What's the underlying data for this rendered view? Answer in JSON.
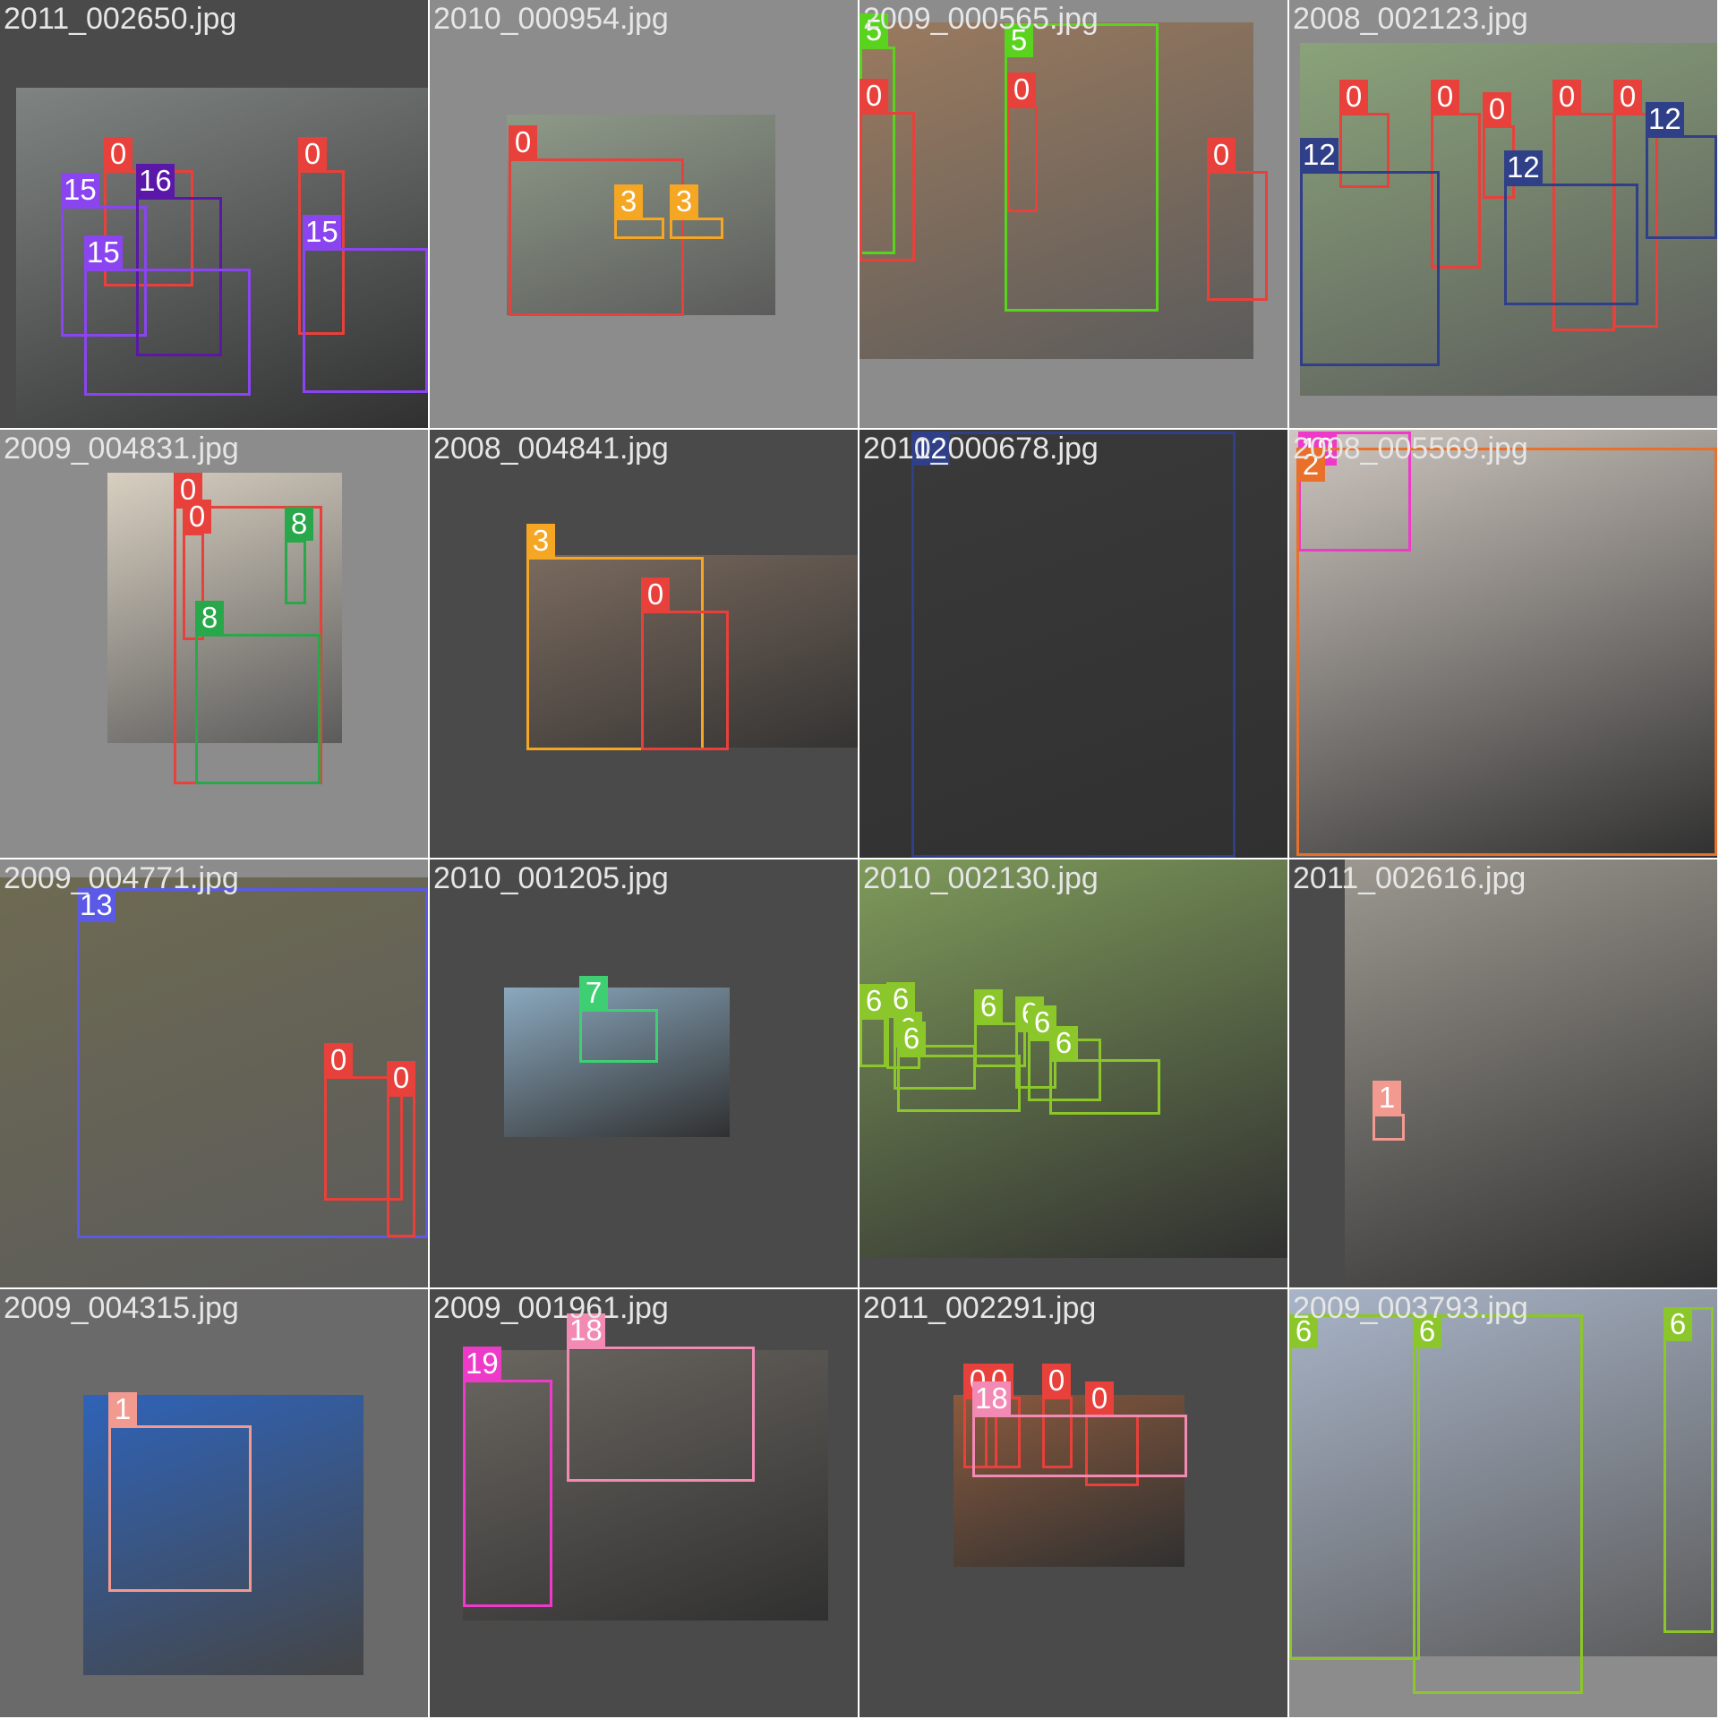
{
  "palette": {
    "0": "#e8403a",
    "1": "#f29a90",
    "3": "#f5a623",
    "5": "#5ad31e",
    "6": "#8bc72a",
    "7": "#3ecf72",
    "8": "#28a84a",
    "12": "#2f3f88",
    "13": "#5a5ae6",
    "15": "#8a45f0",
    "16": "#5b17a8",
    "18": "#f28ab4",
    "19": "#ee3ac8",
    "2": "#e8702a"
  },
  "tiles": [
    {
      "filename": "2011_002650.jpg",
      "background": "#4a4a4a",
      "photo_tone": "#7f8482",
      "boxes": [
        {
          "label": "0"
        },
        {
          "label": "0"
        },
        {
          "label": "15"
        },
        {
          "label": "16"
        },
        {
          "label": "15"
        },
        {
          "label": "15"
        }
      ]
    },
    {
      "filename": "2010_000954.jpg",
      "background": "#8c8c8c",
      "photo_tone": "#8e9a88",
      "boxes": [
        {
          "label": "0"
        },
        {
          "label": "3"
        },
        {
          "label": "3"
        }
      ]
    },
    {
      "filename": "2009_000565.jpg",
      "background": "#8c8c8c",
      "photo_tone": "#9a7a5e",
      "boxes": [
        {
          "label": "5"
        },
        {
          "label": "5"
        },
        {
          "label": "0"
        },
        {
          "label": "0"
        },
        {
          "label": "0"
        }
      ]
    },
    {
      "filename": "2008_002123.jpg",
      "background": "#8c8c8c",
      "photo_tone": "#8aa37a",
      "boxes": [
        {
          "label": "0"
        },
        {
          "label": "0"
        },
        {
          "label": "0"
        },
        {
          "label": "0"
        },
        {
          "label": "0"
        },
        {
          "label": "12"
        },
        {
          "label": "12"
        },
        {
          "label": "12"
        }
      ]
    },
    {
      "filename": "2009_004831.jpg",
      "background": "#8c8c8c",
      "photo_tone": "#d8cfc0",
      "boxes": [
        {
          "label": "0"
        },
        {
          "label": "0"
        },
        {
          "label": "8"
        },
        {
          "label": "8"
        }
      ]
    },
    {
      "filename": "2008_004841.jpg",
      "background": "#4a4a4a",
      "photo_tone": "#7a6a5e",
      "boxes": [
        {
          "label": "3"
        },
        {
          "label": "0"
        }
      ]
    },
    {
      "filename": "2010_000678.jpg",
      "background": "#4a4a4a",
      "photo_tone": "#3a3a3a",
      "boxes": [
        {
          "label": "12"
        }
      ]
    },
    {
      "filename": "2008_005569.jpg",
      "background": "#4a4a4a",
      "photo_tone": "#cfc7c0",
      "boxes": [
        {
          "label": "19"
        },
        {
          "label": "2"
        }
      ]
    },
    {
      "filename": "2009_004771.jpg",
      "background": "#8c8c8c",
      "photo_tone": "#6e6a52",
      "boxes": [
        {
          "label": "13"
        },
        {
          "label": "0"
        },
        {
          "label": "0"
        }
      ]
    },
    {
      "filename": "2010_001205.jpg",
      "background": "#4a4a4a",
      "photo_tone": "#8aa8be",
      "boxes": [
        {
          "label": "7"
        }
      ]
    },
    {
      "filename": "2010_002130.jpg",
      "background": "#4a4a4a",
      "photo_tone": "#7e9a5a",
      "boxes": [
        {
          "label": "6"
        },
        {
          "label": "6"
        },
        {
          "label": "6"
        },
        {
          "label": "6"
        },
        {
          "label": "6"
        },
        {
          "label": "6"
        },
        {
          "label": "6"
        },
        {
          "label": "6"
        }
      ]
    },
    {
      "filename": "2011_002616.jpg",
      "background": "#4a4a4a",
      "photo_tone": "#9c9890",
      "boxes": [
        {
          "label": "1"
        }
      ]
    },
    {
      "filename": "2009_004315.jpg",
      "background": "#6a6a6a",
      "photo_tone": "#2f63b8",
      "boxes": [
        {
          "label": "1"
        }
      ]
    },
    {
      "filename": "2009_001961.jpg",
      "background": "#4a4a4a",
      "photo_tone": "#6a6660",
      "boxes": [
        {
          "label": "19"
        },
        {
          "label": "18"
        }
      ]
    },
    {
      "filename": "2011_002291.jpg",
      "background": "#4a4a4a",
      "photo_tone": "#8a5a3e",
      "boxes": [
        {
          "label": "0"
        },
        {
          "label": "0"
        },
        {
          "label": "0"
        },
        {
          "label": "0"
        },
        {
          "label": "18"
        }
      ]
    },
    {
      "filename": "2009_003793.jpg",
      "background": "#8c8c8c",
      "photo_tone": "#a8b4c8",
      "boxes": [
        {
          "label": "6"
        },
        {
          "label": "6"
        },
        {
          "label": "6"
        }
      ]
    }
  ]
}
